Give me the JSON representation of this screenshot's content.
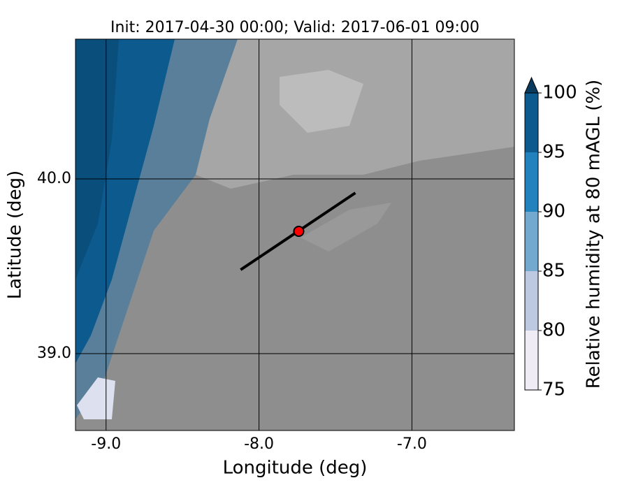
{
  "chart_data": {
    "type": "contour-map",
    "title": "Init: 2017-04-30 00:00; Valid: 2017-06-01 09:00",
    "x_label": "Longitude (deg)",
    "y_label": "Latitude (deg)",
    "xlim": [
      -9.2,
      -6.33
    ],
    "ylim": [
      38.56,
      40.8
    ],
    "xticks": [
      {
        "value": -9,
        "label": "-9.0"
      },
      {
        "value": -8,
        "label": "-8.0"
      },
      {
        "value": -7,
        "label": "-7.0"
      }
    ],
    "yticks": [
      {
        "value": 39,
        "label": "39.0"
      },
      {
        "value": 40,
        "label": "40.0"
      }
    ],
    "grid": true,
    "section_line": {
      "x": [
        -8.12,
        -7.37
      ],
      "y": [
        39.48,
        39.92
      ],
      "color": "#000000"
    },
    "point": {
      "x": -7.74,
      "y": 39.7,
      "color": "#ff0000"
    },
    "colorbar": {
      "label": "Relative humidity at 80 mAGL (%)",
      "levels": [
        75,
        80,
        85,
        90,
        95,
        100
      ],
      "colors": [
        "#efecf5",
        "#bdc8e1",
        "#74a9cf",
        "#2182be",
        "#0c5a8e"
      ],
      "extend_color": "#0a3a5e",
      "ticks": [
        75,
        80,
        85,
        90,
        95,
        100
      ]
    }
  }
}
